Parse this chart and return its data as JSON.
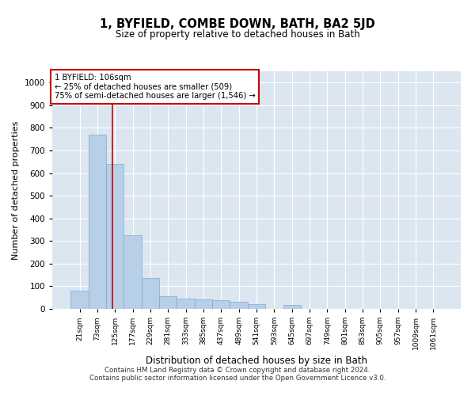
{
  "title": "1, BYFIELD, COMBE DOWN, BATH, BA2 5JD",
  "subtitle": "Size of property relative to detached houses in Bath",
  "xlabel": "Distribution of detached houses by size in Bath",
  "ylabel": "Number of detached properties",
  "footer_line1": "Contains HM Land Registry data © Crown copyright and database right 2024.",
  "footer_line2": "Contains public sector information licensed under the Open Government Licence v3.0.",
  "annotation_line1": "1 BYFIELD: 106sqm",
  "annotation_line2": "← 25% of detached houses are smaller (509)",
  "annotation_line3": "75% of semi-detached houses are larger (1,546) →",
  "bar_color": "#b8cfe8",
  "bar_edge_color": "#7aaad0",
  "bg_color": "#dce6f0",
  "grid_color": "#ffffff",
  "red_line_color": "#cc0000",
  "annotation_box_edge": "#cc0000",
  "categories": [
    "21sqm",
    "73sqm",
    "125sqm",
    "177sqm",
    "229sqm",
    "281sqm",
    "333sqm",
    "385sqm",
    "437sqm",
    "489sqm",
    "541sqm",
    "593sqm",
    "645sqm",
    "697sqm",
    "749sqm",
    "801sqm",
    "853sqm",
    "905sqm",
    "957sqm",
    "1009sqm",
    "1061sqm"
  ],
  "values": [
    80,
    770,
    640,
    325,
    135,
    57,
    47,
    42,
    37,
    30,
    20,
    0,
    18,
    0,
    0,
    0,
    0,
    0,
    0,
    0,
    0
  ],
  "red_line_x": 1.85,
  "ylim": [
    0,
    1050
  ],
  "yticks": [
    0,
    100,
    200,
    300,
    400,
    500,
    600,
    700,
    800,
    900,
    1000
  ]
}
